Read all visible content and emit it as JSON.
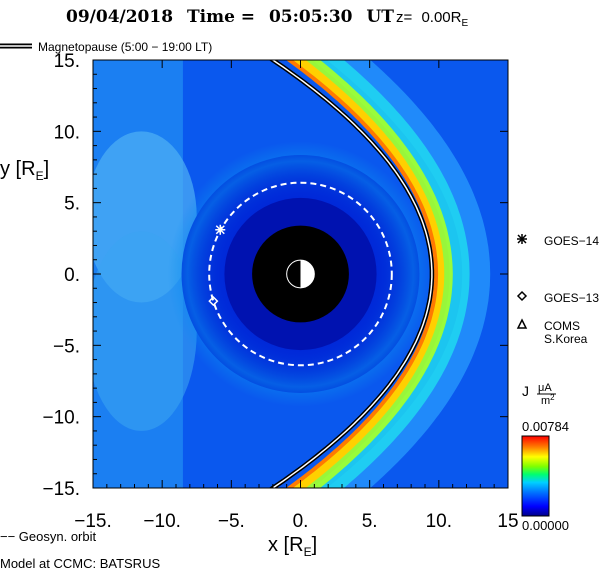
{
  "chart_data": {
    "type": "heatmap",
    "title": {
      "date": "09/04/2018",
      "time_label": "Time =",
      "time": "05:05:30",
      "time_unit": "UT",
      "z_label": "z=",
      "z_value": "0.00R",
      "z_sub": "E"
    },
    "xlabel": {
      "text": "x [R",
      "sub": "E",
      "close": "]"
    },
    "ylabel": {
      "text": "y [R",
      "sub": "E",
      "close": "]"
    },
    "xlim": [
      -15,
      15
    ],
    "ylim": [
      -15,
      15
    ],
    "xticks": [
      -15,
      -10,
      -5,
      0,
      5,
      10,
      15
    ],
    "yticks": [
      -15,
      -10,
      -5,
      0,
      5,
      10,
      15
    ],
    "xtick_labels": [
      "−15.",
      "−10.",
      "−5.",
      "0.",
      "5.",
      "10.",
      "15"
    ],
    "ytick_labels": [
      "−15.",
      "−10.",
      "−5.",
      "0.",
      "5.",
      "10.",
      "15."
    ],
    "magnetopause": {
      "label": "Magnetopause (5:00 − 19:00 LT)",
      "standoff_x": 9.5,
      "flank_x": -2
    },
    "geosync_orbit": {
      "label": "−− Geosyn. orbit",
      "radius": 6.6
    },
    "earth_radius": 3.5,
    "satellites": [
      {
        "name": "GOES−14",
        "symbol": "star",
        "x": -5.8,
        "y": 3.1
      },
      {
        "name": "GOES−13",
        "symbol": "diamond",
        "x": -6.3,
        "y": -1.9
      },
      {
        "name": "COMS",
        "name2": "S.Korea",
        "symbol": "triangle"
      }
    ],
    "colorbar": {
      "label": "J",
      "unit_num": "μA",
      "unit_den": "m",
      "unit_den_sup": "2",
      "max_label": "0.00784",
      "min_label": "0.00000",
      "min": 0,
      "max": 0.00784
    },
    "footer": "Model at CCMC: BATSRUS"
  }
}
